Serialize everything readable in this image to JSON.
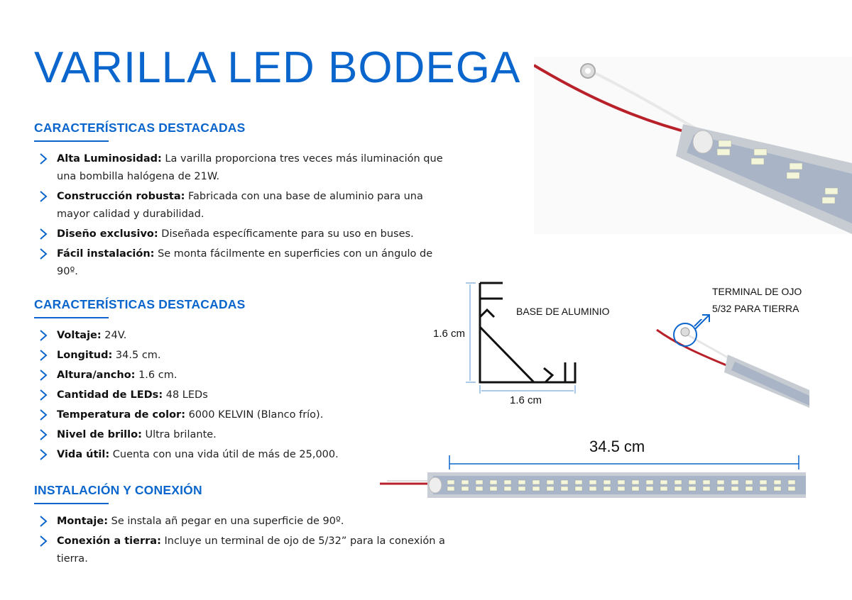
{
  "title": "VARILLA LED BODEGA",
  "sections": [
    {
      "heading": "CARACTERÍSTICAS DESTACADAS",
      "items": [
        {
          "label": "Alta Luminosidad:",
          "text": " La varilla proporciona tres veces más iluminación que una bombilla halógena de 21W."
        },
        {
          "label": "Construcción robusta:",
          "text": " Fabricada con una base de aluminio para una mayor calidad y durabilidad."
        },
        {
          "label": "Diseño exclusivo:",
          "text": " Diseñada específicamente para su uso en buses."
        },
        {
          "label": "Fácil instalación:",
          "text": " Se monta fácilmente en superficies con un ángulo de 90º."
        }
      ]
    },
    {
      "heading": "CARACTERÍSTICAS DESTACADAS",
      "items": [
        {
          "label": "Voltaje:",
          "text": " 24V."
        },
        {
          "label": "Longitud:",
          "text": " 34.5 cm."
        },
        {
          "label": "Altura/ancho:",
          "text": " 1.6 cm."
        },
        {
          "label": "Cantidad de LEDs:",
          "text": " 48 LEDs"
        },
        {
          "label": "Temperatura de color:",
          "text": " 6000 KELVIN (Blanco frío)."
        },
        {
          "label": "Nivel de brillo:",
          "text": " Ultra brilante."
        },
        {
          "label": "Vida útil:",
          "text": " Cuenta con una vida útil de más de 25,000."
        }
      ]
    },
    {
      "heading": "INSTALACIÓN Y CONEXIÓN",
      "items": [
        {
          "label": "Montaje:",
          "text": " Se instala añ pegar en una superficie de 90º."
        },
        {
          "label": "Conexión a tierra:",
          "text": " Incluye un terminal de ojo de 5/32” para la conexión a tierra."
        }
      ]
    }
  ],
  "diagram": {
    "base_label": "BASE DE ALUMINIO",
    "height_label": "1.6 cm",
    "width_label": "1.6 cm",
    "terminal_label_1": "TERMINAL DE OJO",
    "terminal_label_2": "5/32 PARA TIERRA",
    "length_label": "34.5 cm"
  },
  "colors": {
    "accent": "#0a66cc",
    "dimension": "#8fb8e0"
  }
}
